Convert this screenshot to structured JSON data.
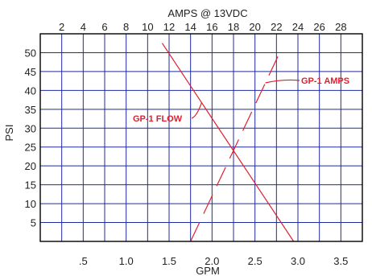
{
  "chart_data": {
    "type": "line",
    "top_axis_title": "AMPS @ 13VDC",
    "x_axis_title": "GPM",
    "y_axis_title": "PSI",
    "top_ticks": [
      "2",
      "4",
      "6",
      "8",
      "10",
      "12",
      "14",
      "16",
      "18",
      "20",
      "22",
      "24",
      "26",
      "28"
    ],
    "top_range": [
      0,
      30
    ],
    "bottom_ticks": [
      ".5",
      "1.0",
      "1.5",
      "2.0",
      "2.5",
      "3.0",
      "3.5"
    ],
    "x_range": [
      0,
      3.75
    ],
    "y_ticks": [
      "5",
      "10",
      "15",
      "20",
      "25",
      "30",
      "35",
      "40",
      "45",
      "50"
    ],
    "y_range": [
      0,
      55
    ],
    "grid": true,
    "series": [
      {
        "name": "GP-1 FLOW",
        "axis": "bottom",
        "style": "solid",
        "color": "#e0202e",
        "x": [
          1.42,
          2.95
        ],
        "y": [
          52.5,
          0
        ]
      },
      {
        "name": "GP-1 AMPS",
        "axis": "top",
        "style": "dashed",
        "color": "#e0202e",
        "x": [
          14.0,
          22.3
        ],
        "y": [
          0,
          50
        ]
      }
    ],
    "annotations": [
      {
        "text": "GP-1 FLOW",
        "series": "GP-1 FLOW"
      },
      {
        "text": "GP-1 AMPS",
        "series": "GP-1 AMPS"
      }
    ]
  }
}
